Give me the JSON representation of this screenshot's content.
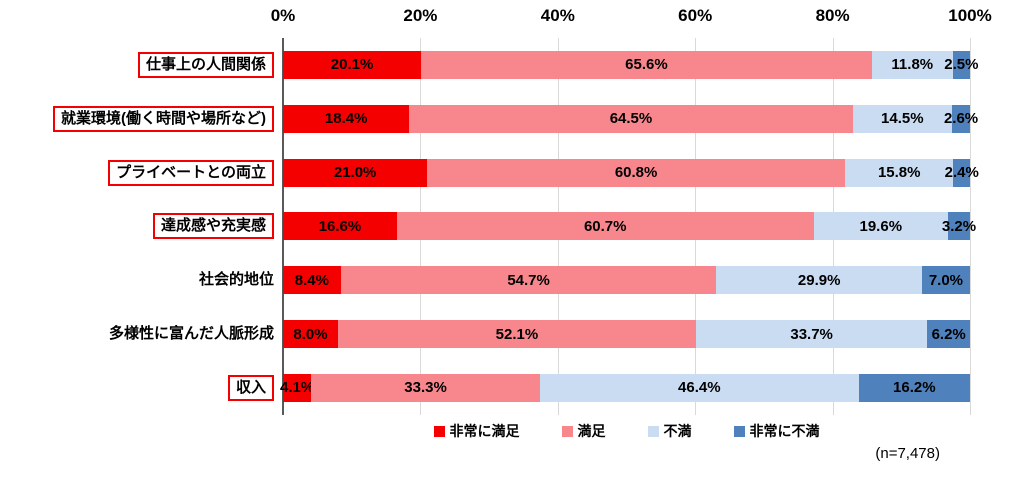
{
  "chart_data": {
    "type": "bar",
    "orientation": "horizontal",
    "stacked": true,
    "title": "",
    "xlabel": "",
    "ylabel": "",
    "x_axis": {
      "min": 0,
      "max": 100,
      "position": "top",
      "ticks": [
        "0%",
        "20%",
        "40%",
        "60%",
        "80%",
        "100%"
      ],
      "tick_values": [
        0,
        20,
        40,
        60,
        80,
        100
      ]
    },
    "grid": true,
    "categories": [
      "仕事上の人間関係",
      "就業環境(働く時間や場所など)",
      "プライベートとの両立",
      "達成感や充実感",
      "社会的地位",
      "多様性に富んだ人脈形成",
      "収入"
    ],
    "categories_boxed": [
      true,
      true,
      true,
      true,
      false,
      false,
      true
    ],
    "series": [
      {
        "name": "非常に満足",
        "color": "#f40000",
        "values": [
          20.1,
          18.4,
          21.0,
          16.6,
          8.4,
          8.0,
          4.1
        ]
      },
      {
        "name": "満足",
        "color": "#f8878d",
        "values": [
          65.6,
          64.5,
          60.8,
          60.7,
          54.7,
          52.1,
          33.3
        ]
      },
      {
        "name": "不満",
        "color": "#c9dcf2",
        "values": [
          11.8,
          14.5,
          15.8,
          19.6,
          29.9,
          33.7,
          46.4
        ]
      },
      {
        "name": "非常に不満",
        "color": "#4f81bd",
        "values": [
          2.5,
          2.6,
          2.4,
          3.2,
          7.0,
          6.2,
          16.2
        ]
      }
    ],
    "value_label_format": "{value}%",
    "legend_position": "bottom",
    "note": "(n=7,478)"
  },
  "colors": {
    "accent_red": "#f40000",
    "gridline": "#d9d9d9",
    "axis_line": "#595959",
    "label_text": "#000000"
  }
}
